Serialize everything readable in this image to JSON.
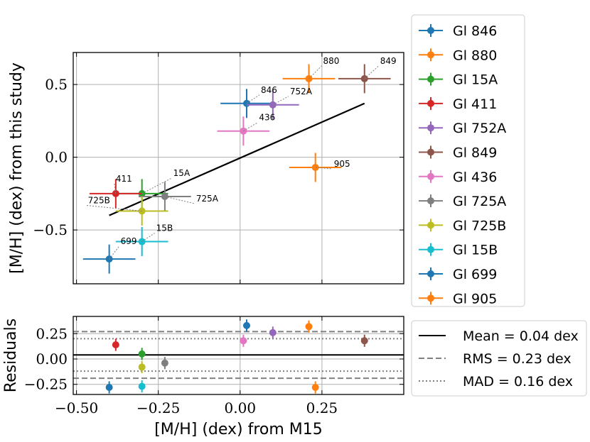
{
  "chart_data": [
    {
      "type": "scatter",
      "title": "",
      "xlabel": "[M/H] (dex) from M15",
      "ylabel": "[M/H] (dex) from this study",
      "xlim": [
        -0.51,
        0.5
      ],
      "ylim": [
        -0.87,
        0.72
      ],
      "yticks": [
        0.5,
        0.0,
        -0.5
      ],
      "ytick_labels": [
        "0.5",
        "0.0",
        "−0.5"
      ],
      "grid": true,
      "series": [
        {
          "name": "Gl 846",
          "label": "846",
          "color": "#1f77b4",
          "x": 0.02,
          "y": 0.37,
          "xerr": 0.08,
          "yerr": 0.1
        },
        {
          "name": "Gl 880",
          "label": "880",
          "color": "#ff7f0e",
          "x": 0.21,
          "y": 0.54,
          "xerr": 0.08,
          "yerr": 0.1
        },
        {
          "name": "Gl 15A",
          "label": "15A",
          "color": "#2ca02c",
          "x": -0.3,
          "y": -0.25,
          "xerr": 0.08,
          "yerr": 0.1
        },
        {
          "name": "Gl 411",
          "label": "411",
          "color": "#d62728",
          "x": -0.38,
          "y": -0.25,
          "xerr": 0.08,
          "yerr": 0.1
        },
        {
          "name": "Gl 752A",
          "label": "752A",
          "color": "#9467bd",
          "x": 0.1,
          "y": 0.36,
          "xerr": 0.08,
          "yerr": 0.1
        },
        {
          "name": "Gl 849",
          "label": "849",
          "color": "#8c564b",
          "x": 0.38,
          "y": 0.54,
          "xerr": 0.08,
          "yerr": 0.1
        },
        {
          "name": "Gl 436",
          "label": "436",
          "color": "#e377c2",
          "x": 0.01,
          "y": 0.18,
          "xerr": 0.08,
          "yerr": 0.1
        },
        {
          "name": "Gl 725A",
          "label": "725A",
          "color": "#7f7f7f",
          "x": -0.23,
          "y": -0.27,
          "xerr": 0.08,
          "yerr": 0.1
        },
        {
          "name": "Gl 725B",
          "label": "725B",
          "color": "#bcbd22",
          "x": -0.3,
          "y": -0.37,
          "xerr": 0.08,
          "yerr": 0.1
        },
        {
          "name": "Gl 15B",
          "label": "15B",
          "color": "#17becf",
          "x": -0.3,
          "y": -0.58,
          "xerr": 0.08,
          "yerr": 0.1
        },
        {
          "name": "Gl 699",
          "label": "699",
          "color": "#1f77b4",
          "x": -0.4,
          "y": -0.7,
          "xerr": 0.08,
          "yerr": 0.1
        },
        {
          "name": "Gl 905",
          "label": "905",
          "color": "#ff7f0e",
          "x": 0.23,
          "y": -0.07,
          "xerr": 0.08,
          "yerr": 0.1
        }
      ],
      "fit_line": {
        "x": [
          -0.4,
          0.38
        ],
        "y": [
          -0.4,
          0.37
        ],
        "color": "#000000"
      }
    },
    {
      "type": "scatter",
      "title": "",
      "xlabel": "[M/H] (dex) from M15",
      "ylabel": "Residuals",
      "xlim": [
        -0.51,
        0.5
      ],
      "ylim": [
        -0.35,
        0.42
      ],
      "xticks": [
        -0.5,
        -0.25,
        0.0,
        0.25
      ],
      "xtick_labels": [
        "−0.50",
        "−0.25",
        "0.00",
        "0.25"
      ],
      "yticks": [
        0.25,
        0.0,
        -0.25
      ],
      "ytick_labels": [
        "0.25",
        "0.00",
        "−0.25"
      ],
      "grid": true,
      "points": [
        {
          "name": "Gl 846",
          "color": "#1f77b4",
          "x": 0.02,
          "y": 0.33,
          "yerr": 0.06
        },
        {
          "name": "Gl 880",
          "color": "#ff7f0e",
          "x": 0.21,
          "y": 0.32,
          "yerr": 0.06
        },
        {
          "name": "Gl 15A",
          "color": "#2ca02c",
          "x": -0.3,
          "y": 0.05,
          "yerr": 0.06
        },
        {
          "name": "Gl 411",
          "color": "#d62728",
          "x": -0.38,
          "y": 0.14,
          "yerr": 0.06
        },
        {
          "name": "Gl 752A",
          "color": "#9467bd",
          "x": 0.1,
          "y": 0.26,
          "yerr": 0.06
        },
        {
          "name": "Gl 849",
          "color": "#8c564b",
          "x": 0.38,
          "y": 0.18,
          "yerr": 0.06
        },
        {
          "name": "Gl 436",
          "color": "#e377c2",
          "x": 0.01,
          "y": 0.18,
          "yerr": 0.06
        },
        {
          "name": "Gl 725A",
          "color": "#7f7f7f",
          "x": -0.23,
          "y": -0.04,
          "yerr": 0.06
        },
        {
          "name": "Gl 725B",
          "color": "#bcbd22",
          "x": -0.3,
          "y": -0.08,
          "yerr": 0.06
        },
        {
          "name": "Gl 15B",
          "color": "#17becf",
          "x": -0.3,
          "y": -0.27,
          "yerr": 0.06
        },
        {
          "name": "Gl 699",
          "color": "#1f77b4",
          "x": -0.4,
          "y": -0.28,
          "yerr": 0.06
        },
        {
          "name": "Gl 905",
          "color": "#ff7f0e",
          "x": 0.23,
          "y": -0.28,
          "yerr": 0.06
        }
      ],
      "reference_lines": [
        {
          "name": "Mean = 0.04 dex",
          "style": "solid",
          "color": "#000000",
          "values": [
            0.04
          ]
        },
        {
          "name": "RMS = 0.23 dex",
          "style": "dashed",
          "color": "#808080",
          "values": [
            0.27,
            -0.19
          ]
        },
        {
          "name": "MAD = 0.16 dex",
          "style": "dotted",
          "color": "#808080",
          "values": [
            0.2,
            -0.12
          ]
        }
      ]
    }
  ]
}
